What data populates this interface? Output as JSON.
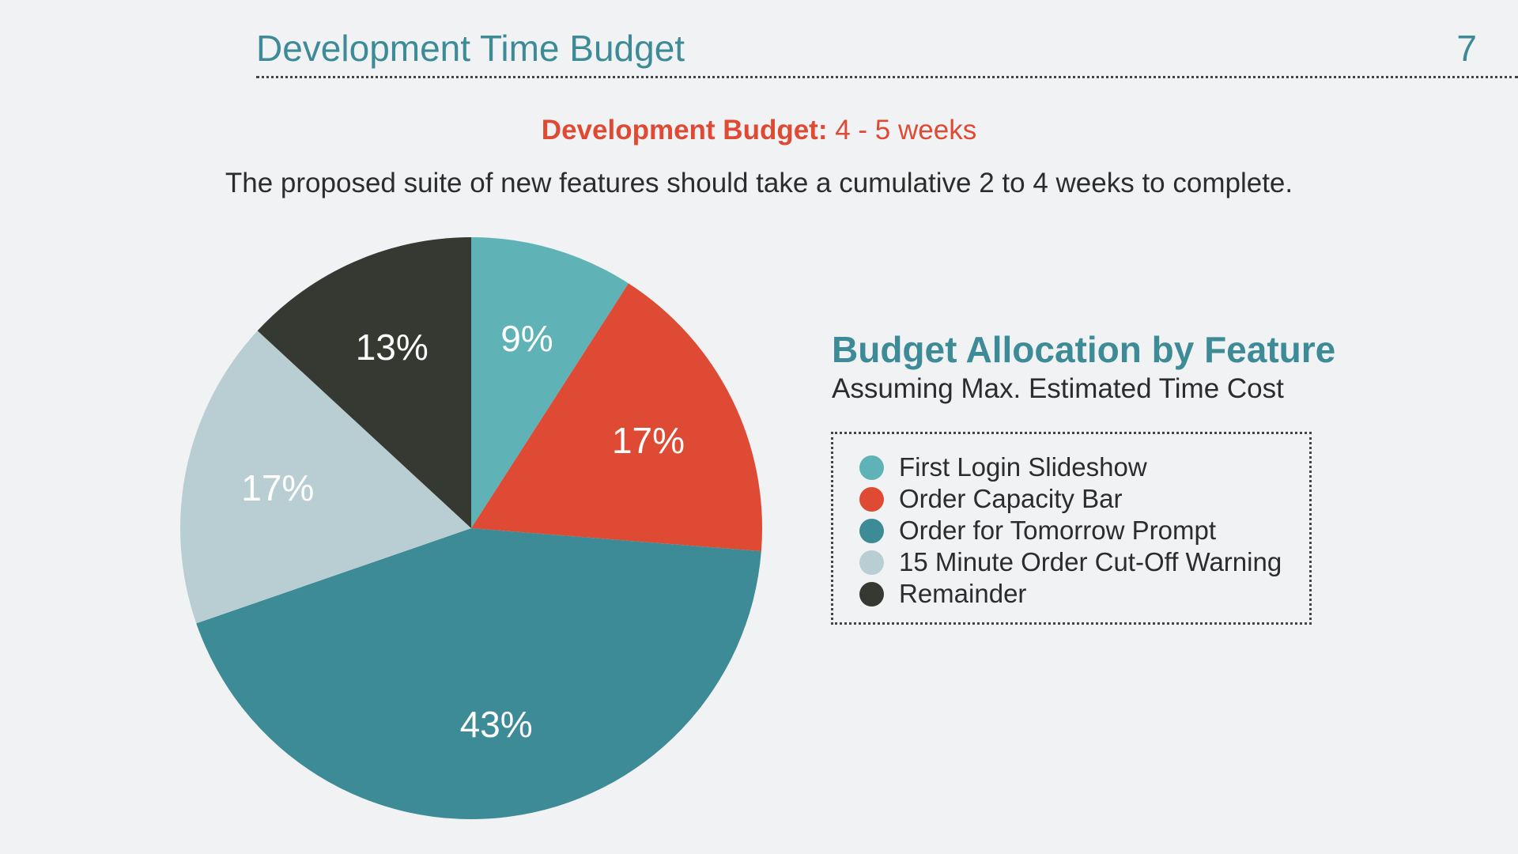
{
  "header": {
    "title": "Development Time Budget",
    "page_number": "7"
  },
  "budget": {
    "label": "Development Budget:",
    "value": "4 - 5 weeks"
  },
  "summary": "The proposed suite of new features should take a cumulative 2 to 4 weeks to complete.",
  "chart_data": {
    "type": "pie",
    "title": "Budget Allocation by Feature",
    "subtitle": "Assuming Max. Estimated Time Cost",
    "legend_placement": "right",
    "slices": [
      {
        "label": "First Login Slideshow",
        "value": 9,
        "display": "9%",
        "color": "#5fb3b6"
      },
      {
        "label": "Order Capacity Bar",
        "value": 17,
        "display": "17%",
        "color": "#de4a33"
      },
      {
        "label": "Order for Tomorrow Prompt",
        "value": 43,
        "display": "43%",
        "color": "#3d8b96"
      },
      {
        "label": "15 Minute Order Cut-Off Warning",
        "value": 17,
        "display": "17%",
        "color": "#b9ced2"
      },
      {
        "label": "Remainder",
        "value": 13,
        "display": "13%",
        "color": "#363832"
      }
    ]
  }
}
